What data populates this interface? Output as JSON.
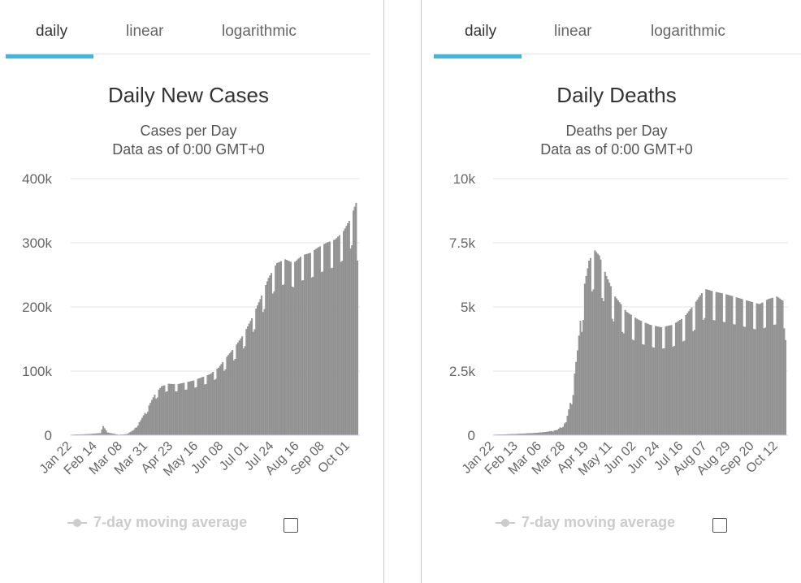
{
  "tabs": [
    "daily",
    "linear",
    "logarithmic"
  ],
  "legend": {
    "moving_average_label": "7-day moving average"
  },
  "colors": {
    "bar": "#9a9a9a",
    "bar_stroke": "#7d7d7d",
    "grid": "#e6e6e6",
    "accent": "#3fb6e2",
    "legend_disabled": "#cccccc"
  },
  "chart_data": [
    {
      "type": "bar",
      "title": "Daily New Cases",
      "subtitle_lines": [
        "Cases per Day",
        "Data as of 0:00 GMT+0"
      ],
      "ylim": [
        0,
        400000
      ],
      "y_ticks": [
        {
          "value": 0,
          "label": "0"
        },
        {
          "value": 100000,
          "label": "100k"
        },
        {
          "value": 200000,
          "label": "200k"
        },
        {
          "value": 300000,
          "label": "300k"
        },
        {
          "value": 400000,
          "label": "400k"
        }
      ],
      "x_tick_labels": [
        "Jan 22",
        "Feb 14",
        "Mar 08",
        "Mar 31",
        "Apr 23",
        "May 16",
        "Jun 08",
        "Jul 01",
        "Jul 24",
        "Aug 16",
        "Sep 08",
        "Oct 01"
      ],
      "anchors": [
        [
          0,
          600
        ],
        [
          12,
          1500
        ],
        [
          21,
          3000
        ],
        [
          23,
          14000
        ],
        [
          26,
          4000
        ],
        [
          34,
          600
        ],
        [
          40,
          1500
        ],
        [
          45,
          8000
        ],
        [
          50,
          23000
        ],
        [
          55,
          42000
        ],
        [
          60,
          63000
        ],
        [
          65,
          76000
        ],
        [
          70,
          80000
        ],
        [
          76,
          79000
        ],
        [
          82,
          82000
        ],
        [
          88,
          85000
        ],
        [
          94,
          90000
        ],
        [
          100,
          95000
        ],
        [
          106,
          105000
        ],
        [
          112,
          122000
        ],
        [
          118,
          138000
        ],
        [
          124,
          157000
        ],
        [
          130,
          182000
        ],
        [
          136,
          212000
        ],
        [
          142,
          245000
        ],
        [
          148,
          268000
        ],
        [
          154,
          274000
        ],
        [
          160,
          268000
        ],
        [
          166,
          280000
        ],
        [
          172,
          284000
        ],
        [
          178,
          293000
        ],
        [
          184,
          300000
        ],
        [
          190,
          305000
        ],
        [
          196,
          318000
        ],
        [
          201,
          338000
        ],
        [
          205,
          362000
        ],
        [
          206,
          340000
        ]
      ],
      "weekly_dip": 0.86,
      "last_value": 272000,
      "grid": true,
      "legend_position": "bottom"
    },
    {
      "type": "bar",
      "title": "Daily Deaths",
      "subtitle_lines": [
        "Deaths per Day",
        "Data as of 0:00 GMT+0"
      ],
      "ylim": [
        0,
        10000
      ],
      "y_ticks": [
        {
          "value": 0,
          "label": "0"
        },
        {
          "value": 2500,
          "label": "2.5k"
        },
        {
          "value": 5000,
          "label": "5k"
        },
        {
          "value": 7500,
          "label": "7.5k"
        },
        {
          "value": 10000,
          "label": "10k"
        }
      ],
      "x_tick_labels": [
        "Jan 22",
        "Feb 13",
        "Mar 06",
        "Mar 28",
        "Apr 19",
        "May 11",
        "Jun 02",
        "Jun 24",
        "Jul 16",
        "Aug 07",
        "Aug 29",
        "Sep 20",
        "Oct 12"
      ],
      "anchors": [
        [
          0,
          15
        ],
        [
          14,
          40
        ],
        [
          28,
          80
        ],
        [
          36,
          120
        ],
        [
          44,
          200
        ],
        [
          50,
          500
        ],
        [
          54,
          1500
        ],
        [
          58,
          3300
        ],
        [
          62,
          5600
        ],
        [
          66,
          6800
        ],
        [
          70,
          7200
        ],
        [
          73,
          7000
        ],
        [
          78,
          6200
        ],
        [
          84,
          5400
        ],
        [
          92,
          4800
        ],
        [
          100,
          4500
        ],
        [
          108,
          4300
        ],
        [
          116,
          4200
        ],
        [
          124,
          4300
        ],
        [
          132,
          4600
        ],
        [
          140,
          5200
        ],
        [
          146,
          5700
        ],
        [
          152,
          5600
        ],
        [
          160,
          5500
        ],
        [
          166,
          5400
        ],
        [
          172,
          5300
        ],
        [
          178,
          5200
        ],
        [
          184,
          5100
        ],
        [
          190,
          5300
        ],
        [
          196,
          5400
        ],
        [
          201,
          5200
        ],
        [
          202,
          3700
        ]
      ],
      "weekly_dip": 0.8,
      "last_value": 3700,
      "grid": true,
      "legend_position": "bottom"
    }
  ]
}
